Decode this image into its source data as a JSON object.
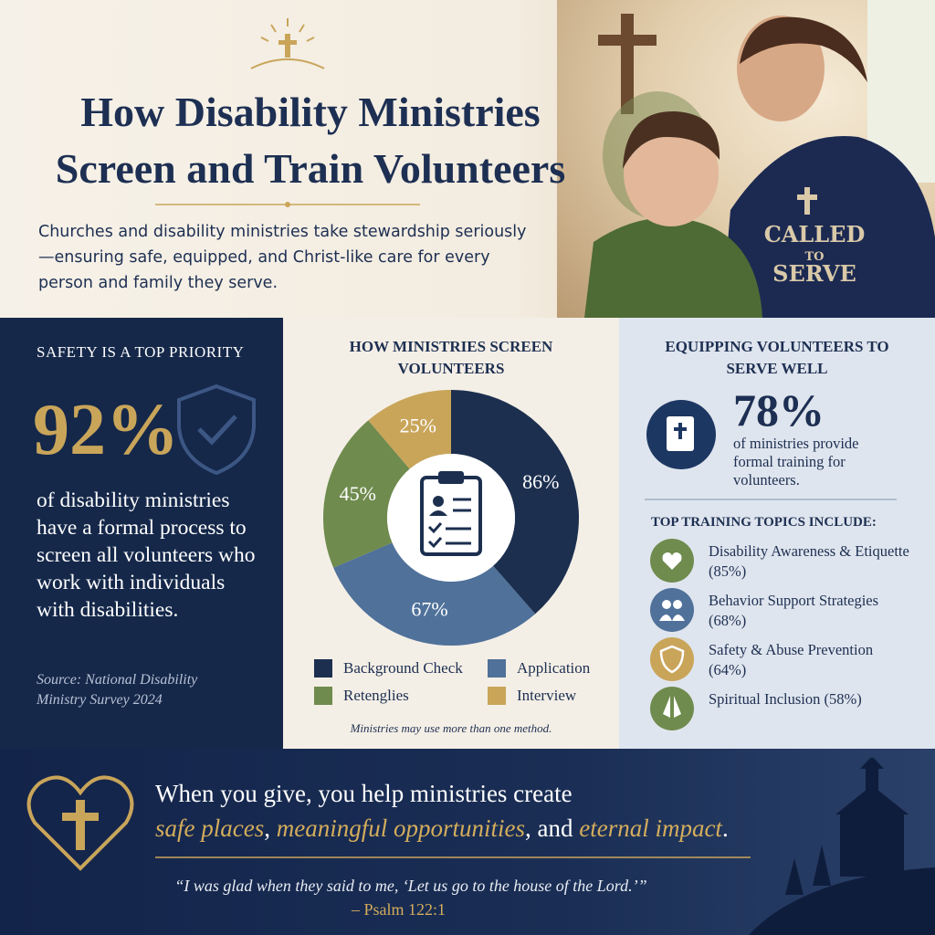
{
  "header": {
    "title": "How Disability Ministries Screen and Train Volunteers",
    "subtitle": "Churches and disability ministries take stewardship seriously—ensuring safe, equipped, and Christ-like care for every person and family they serve.",
    "shirt_text": [
      "CALLED",
      "TO",
      "SERVE"
    ]
  },
  "safety": {
    "heading": "SAFETY IS A TOP PRIORITY",
    "stat": "92%",
    "text": "of disability ministries have a formal process to screen all volunteers who work with individuals with disabilities.",
    "source": "Source: National Disability Ministry Survey 2024"
  },
  "screening": {
    "type": "pie",
    "title": "HOW MINISTRIES SCREEN VOLUNTEERS",
    "categories": [
      "Background Check",
      "Application",
      "Retenglies",
      "Interview"
    ],
    "values": [
      86,
      67,
      45,
      25
    ],
    "value_labels": [
      "86%",
      "67%",
      "45%",
      "25%"
    ],
    "colors": [
      "#1c2f4f",
      "#4f719a",
      "#6f8b4e",
      "#c9a55a"
    ],
    "note": "Ministries may use more than one method."
  },
  "training": {
    "heading": "EQUIPPING VOLUNTEERS TO SERVE WELL",
    "stat": "78%",
    "text": "of ministries provide formal training for volunteers.",
    "topics_heading": "TOP TRAINING TOPICS INCLUDE:",
    "topics": [
      "Disability Awareness & Etiquette (85%)",
      "Behavior Support Strategies (68%)",
      "Safety & Abuse Prevention (64%)",
      "Spiritual Inclusion (58%)"
    ]
  },
  "footer": {
    "lead": "When you give, you help ministries create",
    "parts": [
      "safe places",
      ", ",
      "meaningful opportunities",
      ", and ",
      "eternal impact",
      "."
    ],
    "quote": "“I was glad when they said to me, ‘Let us go to the house of the Lord.’”",
    "citation": "– Psalm 122:1"
  }
}
